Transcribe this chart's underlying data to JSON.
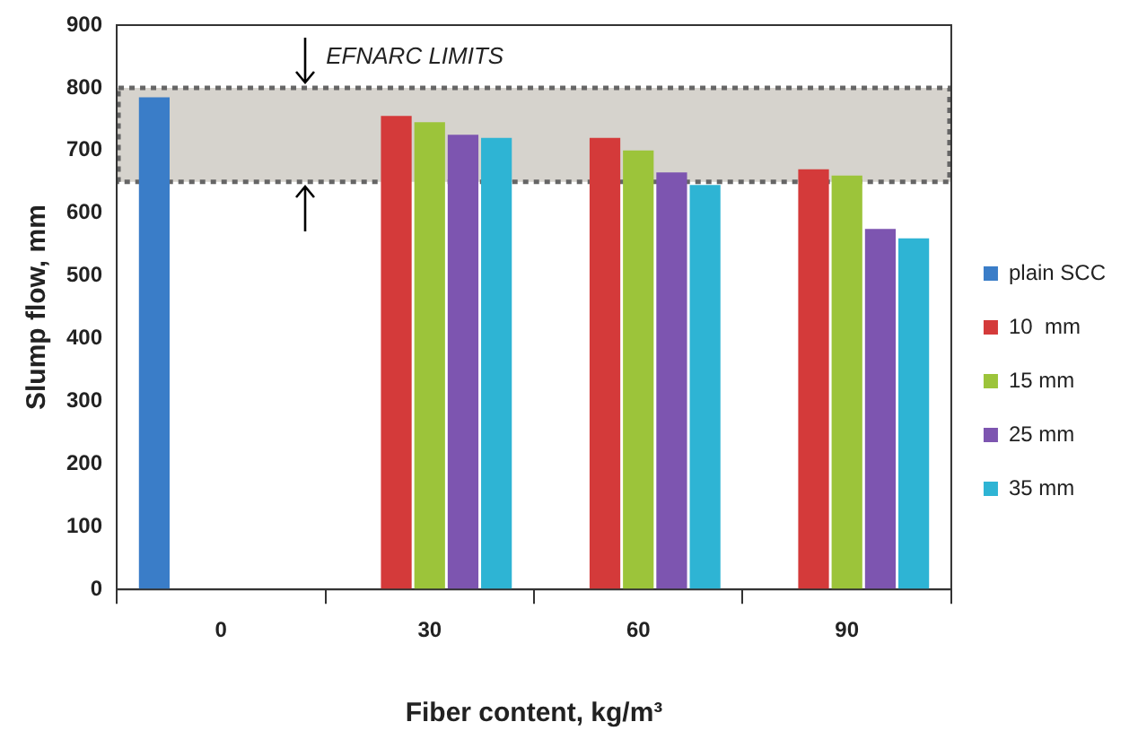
{
  "chart_data": {
    "type": "bar",
    "xlabel": "Fiber content, kg/m³",
    "ylabel": "Slump flow, mm",
    "categories": [
      "0",
      "30",
      "60",
      "90"
    ],
    "series": [
      {
        "name": "plain SCC",
        "color": "#3a7dc8",
        "values": [
          785,
          null,
          null,
          null
        ]
      },
      {
        "name": "10  mm",
        "color": "#d43a3a",
        "values": [
          null,
          755,
          720,
          670
        ]
      },
      {
        "name": "15 mm",
        "color": "#9cc43a",
        "values": [
          null,
          745,
          700,
          660
        ]
      },
      {
        "name": "25 mm",
        "color": "#7d55b0",
        "values": [
          null,
          725,
          665,
          575
        ]
      },
      {
        "name": "35 mm",
        "color": "#2eb4d4",
        "values": [
          null,
          720,
          645,
          560
        ]
      }
    ],
    "ylim": [
      0,
      900
    ],
    "yticks": [
      0,
      100,
      200,
      300,
      400,
      500,
      600,
      700,
      800,
      900
    ],
    "bands": [
      {
        "axis": "y",
        "from": 650,
        "to": 800,
        "label": "EFNARC LIMITS",
        "color": "#d6d3cd"
      }
    ],
    "legend": "right",
    "grid": false
  }
}
